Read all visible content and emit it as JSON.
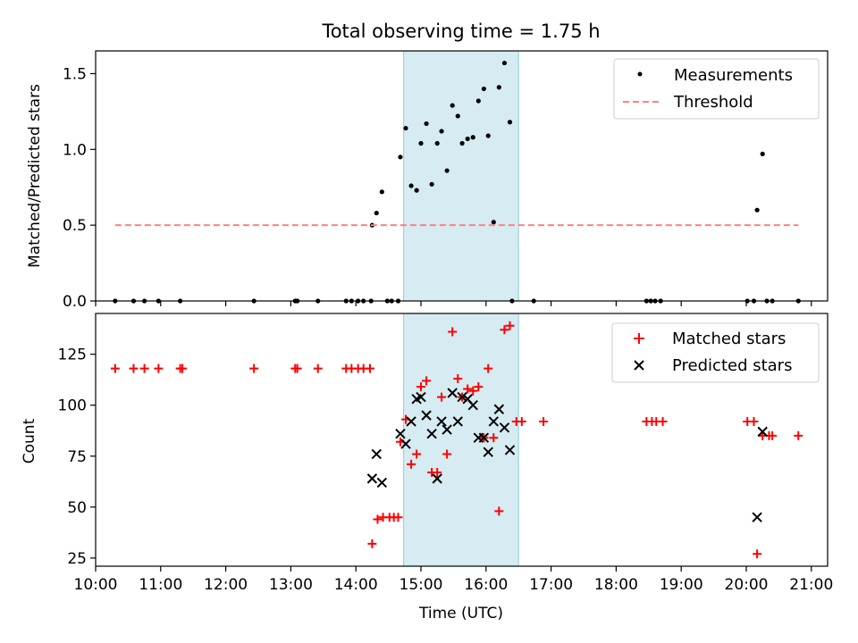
{
  "chart_data": [
    {
      "type": "scatter",
      "title": "Total observing time = 1.75 h",
      "xlabel": "",
      "ylabel": "Matched/Predicted stars",
      "xlim": [
        "10:00",
        "21:15"
      ],
      "ylim": [
        0,
        1.65
      ],
      "y_ticks": [
        "0.0",
        "0.5",
        "1.0",
        "1.5"
      ],
      "grid": false,
      "legend_position": "top-right",
      "observing_window": {
        "start": "14:44",
        "end": "16:30",
        "color": "#add8e6"
      },
      "series": [
        {
          "name": "Measurements",
          "marker": "dot",
          "color": "#000000",
          "points": [
            [
              "10:18",
              0
            ],
            [
              "10:35",
              0
            ],
            [
              "10:45",
              0
            ],
            [
              "10:58",
              0
            ],
            [
              "11:18",
              0
            ],
            [
              "12:26",
              0
            ],
            [
              "13:04",
              0
            ],
            [
              "13:06",
              0
            ],
            [
              "13:25",
              0
            ],
            [
              "13:51",
              0
            ],
            [
              "13:56",
              0
            ],
            [
              "14:02",
              0
            ],
            [
              "14:07",
              0
            ],
            [
              "14:14",
              0
            ],
            [
              "14:15",
              0.5
            ],
            [
              "14:19",
              0.58
            ],
            [
              "14:24",
              0.72
            ],
            [
              "14:29",
              0
            ],
            [
              "14:33",
              0
            ],
            [
              "14:39",
              0
            ],
            [
              "14:41",
              0.95
            ],
            [
              "14:46",
              1.14
            ],
            [
              "14:51",
              0.76
            ],
            [
              "14:56",
              0.73
            ],
            [
              "15:00",
              1.04
            ],
            [
              "15:05",
              1.17
            ],
            [
              "15:10",
              0.77
            ],
            [
              "15:15",
              1.04
            ],
            [
              "15:19",
              1.12
            ],
            [
              "15:24",
              0.86
            ],
            [
              "15:29",
              1.29
            ],
            [
              "15:34",
              1.22
            ],
            [
              "15:38",
              1.04
            ],
            [
              "15:43",
              1.07
            ],
            [
              "15:48",
              1.08
            ],
            [
              "15:53",
              1.32
            ],
            [
              "15:58",
              1.4
            ],
            [
              "16:02",
              1.09
            ],
            [
              "16:07",
              0.52
            ],
            [
              "16:12",
              1.41
            ],
            [
              "16:17",
              1.57
            ],
            [
              "16:22",
              1.18
            ],
            [
              "16:24",
              0
            ],
            [
              "16:44",
              0
            ],
            [
              "18:28",
              0
            ],
            [
              "18:32",
              0
            ],
            [
              "18:36",
              0
            ],
            [
              "18:41",
              0
            ],
            [
              "20:01",
              0
            ],
            [
              "20:07",
              0
            ],
            [
              "20:10",
              0.6
            ],
            [
              "20:15",
              0.97
            ],
            [
              "20:19",
              0
            ],
            [
              "20:24",
              0
            ],
            [
              "20:48",
              0
            ]
          ]
        },
        {
          "name": "Threshold",
          "marker": "dashed-line",
          "color": "#ff8080",
          "y": 0.5,
          "x_range": [
            "10:18",
            "20:48"
          ]
        }
      ]
    },
    {
      "type": "scatter",
      "title": "",
      "xlabel": "Time (UTC)",
      "ylabel": "Count",
      "xlim": [
        "10:00",
        "21:15"
      ],
      "ylim": [
        21,
        145
      ],
      "y_ticks": [
        "25",
        "50",
        "75",
        "100",
        "125"
      ],
      "x_ticks": [
        "10:00",
        "11:00",
        "12:00",
        "13:00",
        "14:00",
        "15:00",
        "16:00",
        "17:00",
        "18:00",
        "19:00",
        "20:00",
        "21:00"
      ],
      "grid": false,
      "legend_position": "top-right",
      "observing_window": {
        "start": "14:44",
        "end": "16:30",
        "color": "#add8e6"
      },
      "series": [
        {
          "name": "Matched stars",
          "marker": "plus",
          "color": "#ff0000",
          "points": [
            [
              "10:18",
              118
            ],
            [
              "10:35",
              118
            ],
            [
              "10:45",
              118
            ],
            [
              "10:58",
              118
            ],
            [
              "11:18",
              118
            ],
            [
              "11:20",
              118
            ],
            [
              "12:26",
              118
            ],
            [
              "13:04",
              118
            ],
            [
              "13:06",
              118
            ],
            [
              "13:25",
              118
            ],
            [
              "13:51",
              118
            ],
            [
              "13:56",
              118
            ],
            [
              "14:02",
              118
            ],
            [
              "14:07",
              118
            ],
            [
              "14:13",
              118
            ],
            [
              "14:15",
              32
            ],
            [
              "14:20",
              44
            ],
            [
              "14:25",
              45
            ],
            [
              "14:31",
              45
            ],
            [
              "14:35",
              45
            ],
            [
              "14:39",
              45
            ],
            [
              "14:41",
              82
            ],
            [
              "14:46",
              93
            ],
            [
              "14:51",
              71
            ],
            [
              "14:56",
              76
            ],
            [
              "15:00",
              109
            ],
            [
              "15:05",
              112
            ],
            [
              "15:10",
              67
            ],
            [
              "15:15",
              67
            ],
            [
              "15:19",
              104
            ],
            [
              "15:24",
              76
            ],
            [
              "15:29",
              136
            ],
            [
              "15:34",
              113
            ],
            [
              "15:38",
              104
            ],
            [
              "15:43",
              108
            ],
            [
              "15:48",
              107
            ],
            [
              "15:53",
              109
            ],
            [
              "15:58",
              84
            ],
            [
              "16:02",
              118
            ],
            [
              "16:07",
              84
            ],
            [
              "16:12",
              48
            ],
            [
              "16:17",
              137
            ],
            [
              "16:22",
              139
            ],
            [
              "16:28",
              92
            ],
            [
              "16:33",
              92
            ],
            [
              "16:53",
              92
            ],
            [
              "18:28",
              92
            ],
            [
              "18:33",
              92
            ],
            [
              "18:37",
              92
            ],
            [
              "18:43",
              92
            ],
            [
              "20:01",
              92
            ],
            [
              "20:07",
              92
            ],
            [
              "20:10",
              27
            ],
            [
              "20:15",
              85
            ],
            [
              "20:21",
              85
            ],
            [
              "20:24",
              85
            ],
            [
              "20:48",
              85
            ]
          ]
        },
        {
          "name": "Predicted stars",
          "marker": "x",
          "color": "#000000",
          "points": [
            [
              "14:15",
              64
            ],
            [
              "14:19",
              76
            ],
            [
              "14:24",
              62
            ],
            [
              "14:41",
              86
            ],
            [
              "14:46",
              81
            ],
            [
              "14:51",
              92
            ],
            [
              "14:56",
              103
            ],
            [
              "15:00",
              104
            ],
            [
              "15:05",
              95
            ],
            [
              "15:10",
              86
            ],
            [
              "15:15",
              64
            ],
            [
              "15:19",
              92
            ],
            [
              "15:24",
              88
            ],
            [
              "15:29",
              106
            ],
            [
              "15:34",
              92
            ],
            [
              "15:38",
              104
            ],
            [
              "15:43",
              103
            ],
            [
              "15:48",
              100
            ],
            [
              "15:53",
              84
            ],
            [
              "15:58",
              84
            ],
            [
              "16:02",
              77
            ],
            [
              "16:07",
              92
            ],
            [
              "16:12",
              98
            ],
            [
              "16:17",
              89
            ],
            [
              "16:22",
              78
            ],
            [
              "20:10",
              45
            ],
            [
              "20:15",
              87
            ]
          ]
        }
      ]
    }
  ]
}
